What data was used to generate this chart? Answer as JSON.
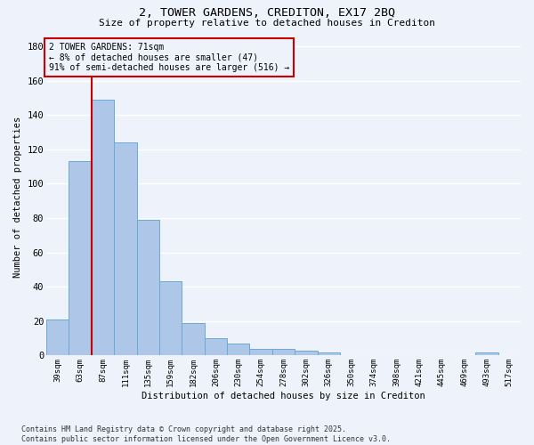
{
  "title1": "2, TOWER GARDENS, CREDITON, EX17 2BQ",
  "title2": "Size of property relative to detached houses in Crediton",
  "xlabel": "Distribution of detached houses by size in Crediton",
  "ylabel": "Number of detached properties",
  "categories": [
    "39sqm",
    "63sqm",
    "87sqm",
    "111sqm",
    "135sqm",
    "159sqm",
    "182sqm",
    "206sqm",
    "230sqm",
    "254sqm",
    "278sqm",
    "302sqm",
    "326sqm",
    "350sqm",
    "374sqm",
    "398sqm",
    "421sqm",
    "445sqm",
    "469sqm",
    "493sqm",
    "517sqm"
  ],
  "values": [
    21,
    113,
    149,
    124,
    79,
    43,
    19,
    10,
    7,
    4,
    4,
    3,
    2,
    0,
    0,
    0,
    0,
    0,
    0,
    2,
    0
  ],
  "bar_color": "#aec6e8",
  "bar_edgecolor": "#6aaad4",
  "vline_x_index": 1.5,
  "vline_color": "#cc0000",
  "annotation_text": "2 TOWER GARDENS: 71sqm\n← 8% of detached houses are smaller (47)\n91% of semi-detached houses are larger (516) →",
  "annotation_box_color": "#cc0000",
  "ylim": [
    0,
    185
  ],
  "yticks": [
    0,
    20,
    40,
    60,
    80,
    100,
    120,
    140,
    160,
    180
  ],
  "background_color": "#eef2fb",
  "grid_color": "#ffffff",
  "footer": "Contains HM Land Registry data © Crown copyright and database right 2025.\nContains public sector information licensed under the Open Government Licence v3.0."
}
